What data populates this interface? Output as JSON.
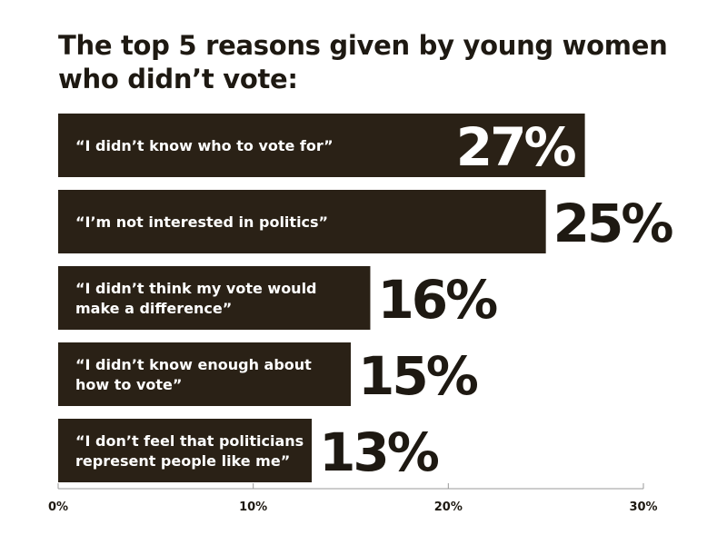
{
  "chart_data": {
    "type": "bar",
    "orientation": "horizontal",
    "title": "The top 5 reasons given by young women who didn’t vote:",
    "categories": [
      [
        "“I didn’t know who to vote for”"
      ],
      [
        "“I’m not interested in politics”"
      ],
      [
        "“I didn’t think my vote would",
        "make a difference”"
      ],
      [
        "“I didn’t know enough about",
        "how to vote”"
      ],
      [
        "“I don’t feel that politicians",
        "represent people like me”"
      ]
    ],
    "values": [
      27,
      25,
      16,
      15,
      13
    ],
    "value_labels": [
      "27%",
      "25%",
      "16%",
      "15%",
      "13%"
    ],
    "xlim": [
      0,
      30
    ],
    "xticks": [
      "0%",
      "10%",
      "20%",
      "30%"
    ],
    "xtick_values": [
      0,
      10,
      20,
      30
    ],
    "value_label_colors": [
      "#ffffff",
      "#1e1912",
      "#1e1912",
      "#1e1912",
      "#1e1912"
    ],
    "bar_color": "#2a2116",
    "grid": false,
    "legend": "none"
  }
}
